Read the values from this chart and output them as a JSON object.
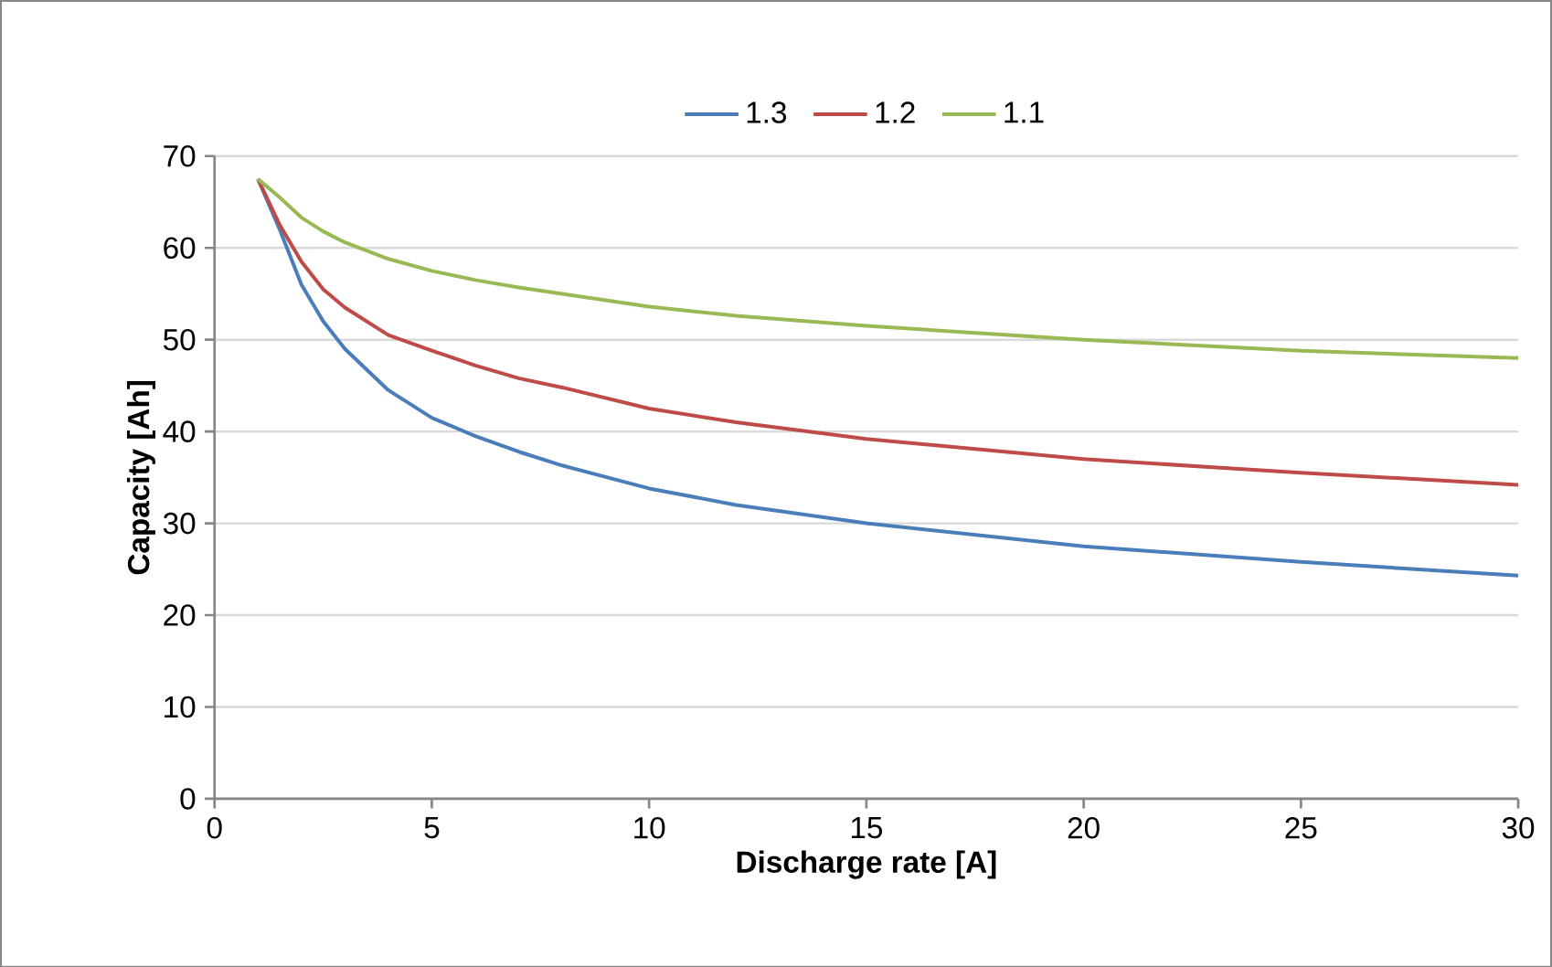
{
  "chart_data": {
    "type": "line",
    "xlabel": "Discharge rate [A]",
    "ylabel": "Capacity [Ah]",
    "x": [
      1,
      1.5,
      2,
      2.5,
      3,
      4,
      5,
      6,
      7,
      8,
      10,
      12,
      15,
      20,
      25,
      30
    ],
    "series": [
      {
        "name": "1.3",
        "color": "#4a7ebb",
        "values": [
          67.5,
          62,
          56,
          52,
          49,
          44.5,
          41.5,
          39.5,
          37.8,
          36.3,
          33.8,
          32,
          30,
          27.5,
          25.8,
          24.3
        ]
      },
      {
        "name": "1.2",
        "color": "#be4b48",
        "values": [
          67.5,
          62.5,
          58.5,
          55.5,
          53.5,
          50.5,
          48.8,
          47.2,
          45.8,
          44.8,
          42.5,
          41,
          39.2,
          37,
          35.5,
          34.2
        ]
      },
      {
        "name": "1.1",
        "color": "#98b954",
        "values": [
          67.5,
          65.5,
          63.3,
          61.8,
          60.6,
          58.8,
          57.5,
          56.5,
          55.7,
          55,
          53.6,
          52.6,
          51.5,
          50,
          48.8,
          48
        ]
      }
    ],
    "xlim": [
      0,
      30
    ],
    "ylim": [
      0,
      70
    ],
    "xticks": [
      0,
      5,
      10,
      15,
      20,
      25,
      30
    ],
    "yticks": [
      0,
      10,
      20,
      30,
      40,
      50,
      60,
      70
    ],
    "grid": "y",
    "legend": "top",
    "marker": "none",
    "line_style": "solid"
  }
}
